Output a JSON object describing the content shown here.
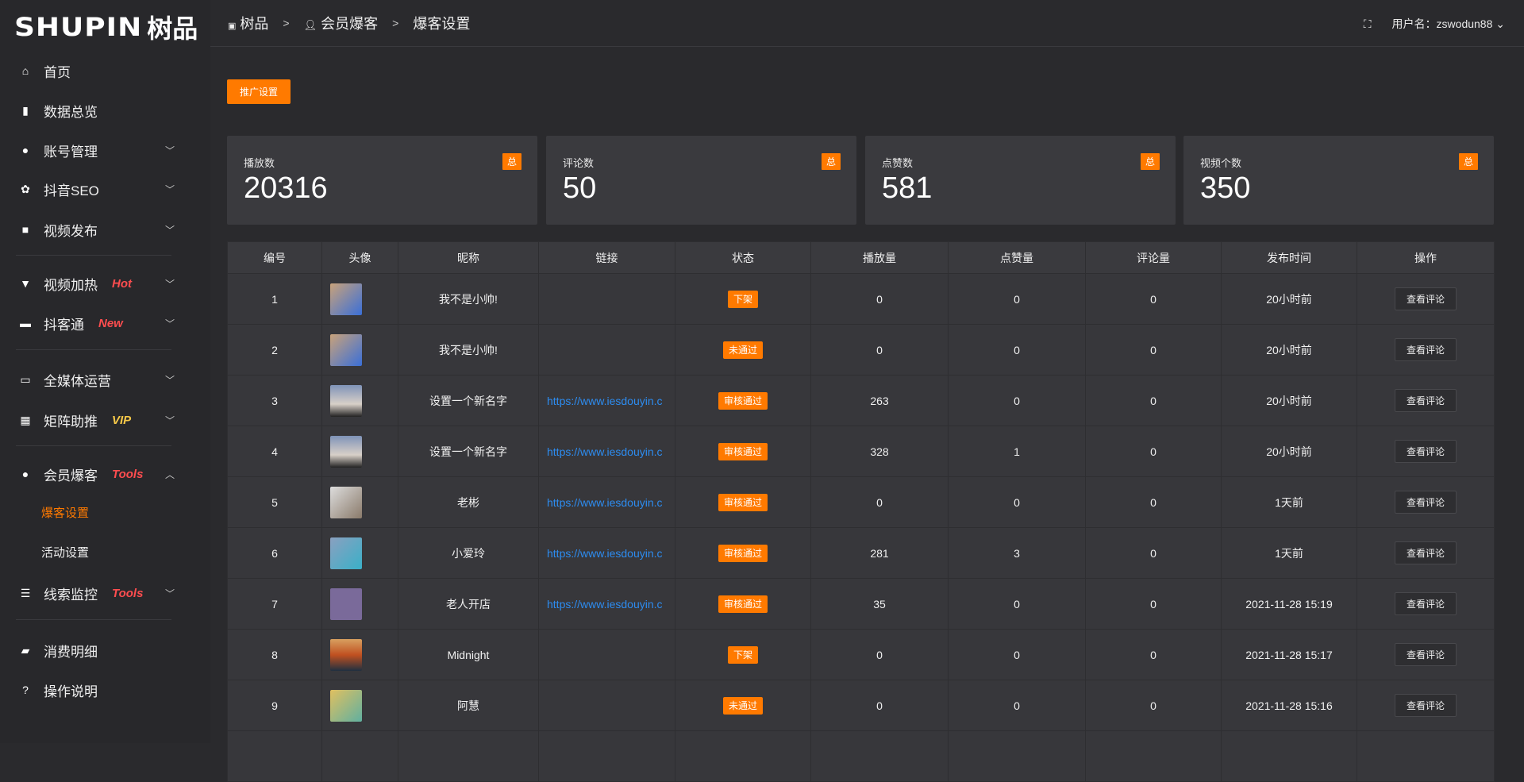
{
  "brand": {
    "logo_en": "SHUPIN",
    "logo_cn": "树品"
  },
  "colors": {
    "accent": "#ff7a00",
    "link": "#2d8cf0",
    "hot": "#ff4d4f",
    "vip": "#f7c948"
  },
  "sidebar": {
    "items": [
      {
        "label": "首页",
        "icon": "home-icon"
      },
      {
        "label": "数据总览",
        "icon": "bar-chart-icon"
      },
      {
        "label": "账号管理",
        "icon": "user-icon",
        "chev": "down"
      },
      {
        "label": "抖音SEO",
        "icon": "gear-icon",
        "chev": "down"
      },
      {
        "label": "视频发布",
        "icon": "camera-icon",
        "chev": "down"
      },
      {
        "label": "视频加热",
        "icon": "flame-icon",
        "chev": "down",
        "tag": "Hot"
      },
      {
        "label": "抖客通",
        "icon": "chat-icon",
        "chev": "down",
        "tag": "New"
      },
      {
        "label": "全媒体运营",
        "icon": "monitor-icon",
        "chev": "down"
      },
      {
        "label": "矩阵助推",
        "icon": "grid-icon",
        "chev": "down",
        "tag": "VIP"
      },
      {
        "label": "会员爆客",
        "icon": "user-icon",
        "chev": "up",
        "tag": "Tools"
      },
      {
        "label": "线索监控",
        "icon": "sliders-icon",
        "chev": "down",
        "tag": "Tools"
      },
      {
        "label": "消费明细",
        "icon": "wallet-icon"
      },
      {
        "label": "操作说明",
        "icon": "help-icon"
      }
    ],
    "sub_items": [
      {
        "label": "爆客设置",
        "active": true
      },
      {
        "label": "活动设置"
      }
    ]
  },
  "header": {
    "breadcrumb": [
      "树品",
      "会员爆客",
      "爆客设置"
    ],
    "user_label": "用户名：zswodun88"
  },
  "toolbar": {
    "promo_label": "推广设置"
  },
  "stats": [
    {
      "label": "播放数",
      "value": "20316",
      "badge": "总"
    },
    {
      "label": "评论数",
      "value": "50",
      "badge": "总"
    },
    {
      "label": "点赞数",
      "value": "581",
      "badge": "总"
    },
    {
      "label": "视频个数",
      "value": "350",
      "badge": "总"
    }
  ],
  "table": {
    "columns": [
      "编号",
      "头像",
      "昵称",
      "链接",
      "状态",
      "播放量",
      "点赞量",
      "评论量",
      "发布时间",
      "操作"
    ],
    "action_label": "查看评论",
    "rows": [
      {
        "id": "1",
        "name": "我不是小帅!",
        "link": "",
        "status": "下架",
        "plays": "0",
        "likes": "0",
        "comments": "0",
        "time": "20小时前"
      },
      {
        "id": "2",
        "name": "我不是小帅!",
        "link": "",
        "status": "未通过",
        "plays": "0",
        "likes": "0",
        "comments": "0",
        "time": "20小时前"
      },
      {
        "id": "3",
        "name": "设置一个新名字",
        "link": "https://www.iesdouyin.c",
        "status": "审核通过",
        "plays": "263",
        "likes": "0",
        "comments": "0",
        "time": "20小时前"
      },
      {
        "id": "4",
        "name": "设置一个新名字",
        "link": "https://www.iesdouyin.c",
        "status": "审核通过",
        "plays": "328",
        "likes": "1",
        "comments": "0",
        "time": "20小时前"
      },
      {
        "id": "5",
        "name": "老彬",
        "link": "https://www.iesdouyin.c",
        "status": "审核通过",
        "plays": "0",
        "likes": "0",
        "comments": "0",
        "time": "1天前"
      },
      {
        "id": "6",
        "name": "小爱玲",
        "link": "https://www.iesdouyin.c",
        "status": "审核通过",
        "plays": "281",
        "likes": "3",
        "comments": "0",
        "time": "1天前"
      },
      {
        "id": "7",
        "name": "老人开店",
        "link": "https://www.iesdouyin.c",
        "status": "审核通过",
        "plays": "35",
        "likes": "0",
        "comments": "0",
        "time": "2021-11-28 15:19"
      },
      {
        "id": "8",
        "name": "Midnight",
        "link": "",
        "status": "下架",
        "plays": "0",
        "likes": "0",
        "comments": "0",
        "time": "2021-11-28 15:17"
      },
      {
        "id": "9",
        "name": "阿慧",
        "link": "",
        "status": "未通过",
        "plays": "0",
        "likes": "0",
        "comments": "0",
        "time": "2021-11-28 15:16"
      }
    ]
  }
}
